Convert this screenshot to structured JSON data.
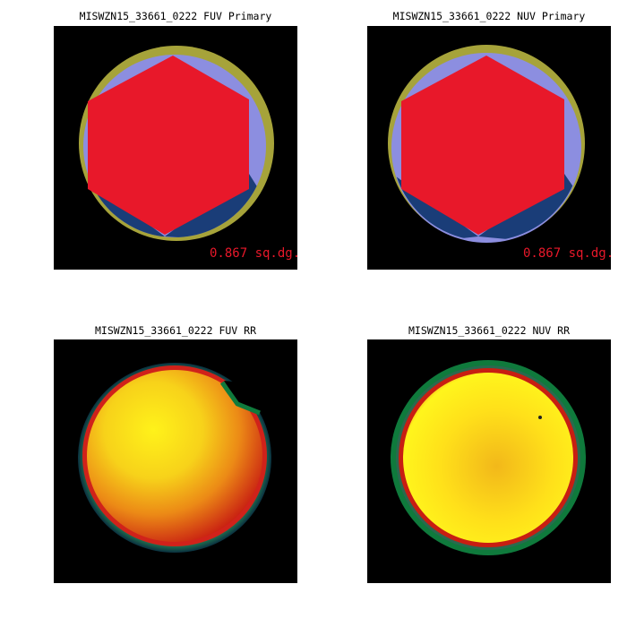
{
  "panels": {
    "fuv_primary": {
      "title": "MISWZN15_33661_0222 FUV Primary",
      "area_label": "0.867 sq.dg."
    },
    "nuv_primary": {
      "title": "MISWZN15_33661_0222 NUV Primary",
      "area_label": "0.867 sq.dg."
    },
    "fuv_rr": {
      "title": "MISWZN15_33661_0222 FUV RR"
    },
    "nuv_rr": {
      "title": "MISWZN15_33661_0222 NUV RR"
    }
  },
  "colors": {
    "background": "#000000",
    "hexagon": "#e8182a",
    "coverage_light": "#8c8ee0",
    "coverage_dark": "#1a3d78",
    "coverage_olive": "#a6a33a",
    "area_label": "#e8182a"
  }
}
